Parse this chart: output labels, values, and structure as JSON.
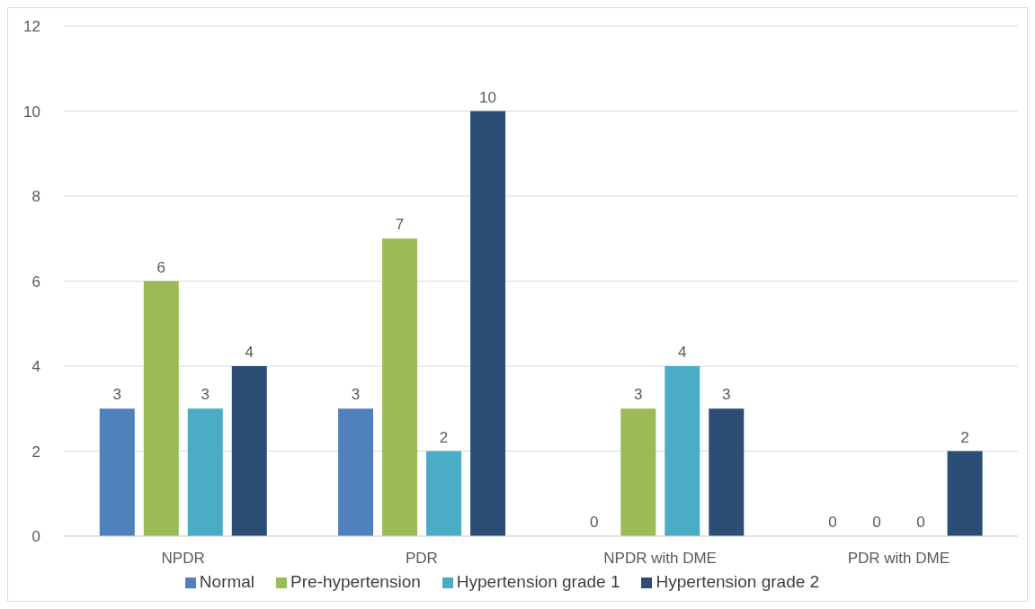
{
  "chart_data": {
    "type": "bar",
    "categories": [
      "NPDR",
      "PDR",
      "NPDR with DME",
      "PDR with DME"
    ],
    "series": [
      {
        "name": "Normal",
        "color": "#4f81bd",
        "values": [
          3,
          3,
          0,
          0
        ]
      },
      {
        "name": "Pre-hypertension",
        "color": "#9bbb59",
        "values": [
          6,
          7,
          3,
          0
        ]
      },
      {
        "name": "Hypertension grade 1",
        "color": "#4bacc6",
        "values": [
          3,
          2,
          4,
          0
        ]
      },
      {
        "name": "Hypertension grade 2",
        "color": "#2c4d75",
        "values": [
          4,
          10,
          3,
          2
        ]
      }
    ],
    "ylim": [
      0,
      12
    ],
    "yticks": [
      0,
      2,
      4,
      6,
      8,
      10,
      12
    ],
    "grid": "y",
    "legend": "bottom",
    "data_labels": true
  }
}
